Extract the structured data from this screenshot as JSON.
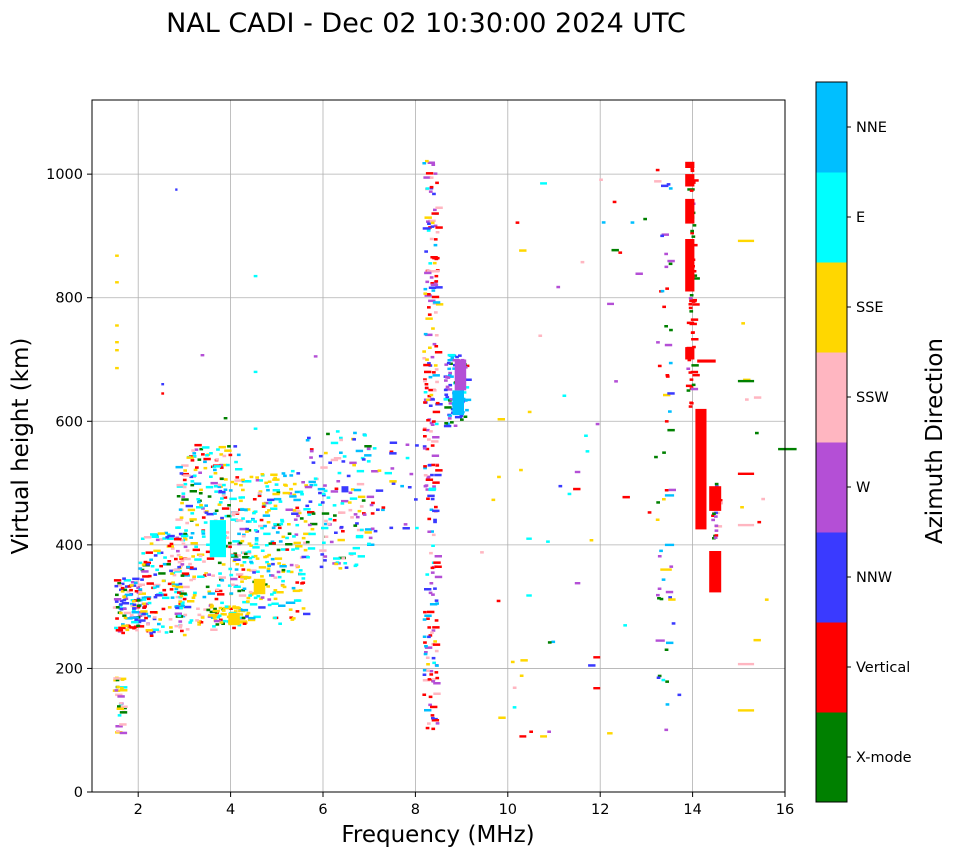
{
  "chart_data": {
    "type": "scatter",
    "subtype": "ionogram",
    "title": "NAL CADI - Dec 02 10:30:00 2024 UTC",
    "xlabel": "Frequency (MHz)",
    "ylabel": "Virtual height (km)",
    "xlim": [
      1,
      16
    ],
    "ylim": [
      0,
      1120
    ],
    "xticks": [
      2,
      4,
      6,
      8,
      10,
      12,
      14,
      16
    ],
    "yticks": [
      0,
      200,
      400,
      600,
      800,
      1000
    ],
    "grid": true,
    "colorbar": {
      "label": "Azimuth Direction",
      "position": "right",
      "categories": [
        "X-mode",
        "Vertical",
        "NNW",
        "W",
        "SSW",
        "SSE",
        "E",
        "NNE"
      ],
      "colors": [
        "#008000",
        "#ff0000",
        "#3a3aff",
        "#b44fd6",
        "#ffb6c1",
        "#ffd700",
        "#00ffff",
        "#00bfff"
      ]
    },
    "cell": {
      "df_mhz": 0.08,
      "dh_km": 4
    },
    "clusters": [
      {
        "f": [
          1.45,
          1.65
        ],
        "h": [
          90,
          190
        ],
        "n": 30,
        "mix": [
          3,
          0,
          0,
          1,
          4,
          4,
          1,
          0
        ]
      },
      {
        "f": [
          1.45,
          2.1
        ],
        "h": [
          255,
          345
        ],
        "n": 120,
        "mix": [
          2,
          4,
          3,
          2,
          3,
          3,
          2,
          2
        ]
      },
      {
        "f": [
          2.0,
          3.0
        ],
        "h": [
          250,
          420
        ],
        "n": 160,
        "mix": [
          1,
          4,
          2,
          1,
          4,
          2,
          3,
          2
        ]
      },
      {
        "f": [
          2.8,
          4.2
        ],
        "h": [
          260,
          560
        ],
        "n": 300,
        "mix": [
          2,
          3,
          1,
          1,
          3,
          4,
          4,
          2
        ]
      },
      {
        "f": [
          3.5,
          4.4
        ],
        "h": [
          270,
          300
        ],
        "n": 45,
        "mix": [
          1,
          0,
          0,
          0,
          0,
          6,
          1,
          0
        ]
      },
      {
        "f": [
          4.2,
          5.6
        ],
        "h": [
          270,
          520
        ],
        "n": 260,
        "mix": [
          1,
          1,
          1,
          1,
          1,
          6,
          5,
          2
        ]
      },
      {
        "f": [
          5.6,
          7.0
        ],
        "h": [
          360,
          585
        ],
        "n": 140,
        "mix": [
          1,
          1,
          3,
          3,
          2,
          2,
          5,
          2
        ]
      },
      {
        "f": [
          7.0,
          8.0
        ],
        "h": [
          420,
          565
        ],
        "n": 30,
        "mix": [
          0,
          1,
          3,
          2,
          0,
          1,
          3,
          1
        ]
      },
      {
        "f": [
          8.15,
          8.45
        ],
        "h": [
          90,
          1020
        ],
        "n": 240,
        "mix": [
          0,
          5,
          2,
          3,
          2,
          1,
          1,
          1
        ]
      },
      {
        "f": [
          8.6,
          9.1
        ],
        "h": [
          590,
          710
        ],
        "n": 90,
        "mix": [
          2,
          1,
          3,
          3,
          0,
          0,
          2,
          3
        ]
      },
      {
        "f": [
          9.3,
          13.7
        ],
        "h": [
          90,
          1000
        ],
        "n": 55,
        "mix": [
          1,
          2,
          1,
          2,
          2,
          2,
          2,
          1
        ]
      },
      {
        "f": [
          13.2,
          13.5
        ],
        "h": [
          95,
          1005
        ],
        "n": 45,
        "mix": [
          3,
          2,
          1,
          2,
          0,
          1,
          0,
          2
        ]
      },
      {
        "f": [
          13.85,
          14.0
        ],
        "h": [
          620,
          1010
        ],
        "n": 60,
        "mix": [
          2,
          6,
          0,
          1,
          0,
          0,
          0,
          0
        ]
      },
      {
        "f": [
          14.4,
          14.5
        ],
        "h": [
          405,
          500
        ],
        "n": 30,
        "mix": [
          3,
          3,
          1,
          3,
          1,
          0,
          0,
          0
        ]
      },
      {
        "f": [
          14.85,
          15.6
        ],
        "h": [
          130,
          900
        ],
        "n": 10,
        "mix": [
          1,
          1,
          0,
          0,
          2,
          2,
          0,
          0
        ]
      }
    ],
    "bars": [
      {
        "f": [
          13.84,
          14.04
        ],
        "h": [
          1010,
          1020
        ],
        "cat": "Vertical"
      },
      {
        "f": [
          13.84,
          14.04
        ],
        "h": [
          980,
          1000
        ],
        "cat": "Vertical"
      },
      {
        "f": [
          13.84,
          14.04
        ],
        "h": [
          920,
          960
        ],
        "cat": "Vertical"
      },
      {
        "f": [
          13.84,
          14.04
        ],
        "h": [
          810,
          895
        ],
        "cat": "Vertical"
      },
      {
        "f": [
          13.84,
          14.04
        ],
        "h": [
          700,
          720
        ],
        "cat": "Vertical"
      },
      {
        "f": [
          14.06,
          14.3
        ],
        "h": [
          425,
          620
        ],
        "cat": "Vertical"
      },
      {
        "f": [
          14.36,
          14.62
        ],
        "h": [
          323,
          390
        ],
        "cat": "Vertical"
      },
      {
        "f": [
          14.36,
          14.62
        ],
        "h": [
          455,
          495
        ],
        "cat": "Vertical"
      },
      {
        "f": [
          14.1,
          14.5
        ],
        "h": [
          695,
          700
        ],
        "cat": "Vertical"
      },
      {
        "f": [
          8.8,
          9.05
        ],
        "h": [
          610,
          650
        ],
        "cat": "NNE"
      },
      {
        "f": [
          8.85,
          9.1
        ],
        "h": [
          650,
          700
        ],
        "cat": "W"
      },
      {
        "f": [
          3.55,
          3.9
        ],
        "h": [
          380,
          440
        ],
        "cat": "E"
      },
      {
        "f": [
          3.95,
          4.2
        ],
        "h": [
          270,
          290
        ],
        "cat": "SSE"
      },
      {
        "f": [
          4.5,
          4.75
        ],
        "h": [
          320,
          345
        ],
        "cat": "SSE"
      },
      {
        "f": [
          6.4,
          6.55
        ],
        "h": [
          485,
          495
        ],
        "cat": "NNW"
      }
    ],
    "points": [
      {
        "f": 15.85,
        "h": 555,
        "cat": "X-mode",
        "w": 0.4
      },
      {
        "f": 14.98,
        "h": 892,
        "cat": "SSE",
        "w": 0.35
      },
      {
        "f": 14.98,
        "h": 665,
        "cat": "X-mode",
        "w": 0.35
      },
      {
        "f": 14.98,
        "h": 515,
        "cat": "Vertical",
        "w": 0.35
      },
      {
        "f": 14.98,
        "h": 432,
        "cat": "SSW",
        "w": 0.35
      },
      {
        "f": 14.98,
        "h": 207,
        "cat": "SSW",
        "w": 0.35
      },
      {
        "f": 14.98,
        "h": 132,
        "cat": "SSE",
        "w": 0.35
      },
      {
        "f": 13.3,
        "h": 360,
        "cat": "SSE",
        "w": 0.25
      },
      {
        "f": 13.2,
        "h": 245,
        "cat": "W",
        "w": 0.2
      },
      {
        "f": 13.4,
        "h": 400,
        "cat": "NNE",
        "w": 0.2
      },
      {
        "f": 13.4,
        "h": 480,
        "cat": "NNE",
        "w": 0.2
      },
      {
        "f": 10.7,
        "h": 985,
        "cat": "E",
        "w": 0.15
      },
      {
        "f": 10.7,
        "h": 90,
        "cat": "SSE",
        "w": 0.15
      },
      {
        "f": 10.25,
        "h": 90,
        "cat": "Vertical",
        "w": 0.15
      },
      {
        "f": 10.4,
        "h": 318,
        "cat": "E",
        "w": 0.12
      },
      {
        "f": 10.4,
        "h": 410,
        "cat": "E",
        "w": 0.12
      },
      {
        "f": 12.15,
        "h": 95,
        "cat": "SSE",
        "w": 0.12
      },
      {
        "f": 11.85,
        "h": 218,
        "cat": "Vertical",
        "w": 0.15
      },
      {
        "f": 11.85,
        "h": 168,
        "cat": "Vertical",
        "w": 0.15
      },
      {
        "f": 12.15,
        "h": 790,
        "cat": "W",
        "w": 0.15
      },
      {
        "f": 11.45,
        "h": 518,
        "cat": "W",
        "w": 0.12
      },
      {
        "f": 11.45,
        "h": 338,
        "cat": "W",
        "w": 0.12
      },
      {
        "f": 2.8,
        "h": 975,
        "cat": "NNW",
        "w": 0.05
      },
      {
        "f": 4.5,
        "h": 835,
        "cat": "E",
        "w": 0.08
      },
      {
        "f": 4.5,
        "h": 680,
        "cat": "E",
        "w": 0.08
      },
      {
        "f": 3.35,
        "h": 707,
        "cat": "W",
        "w": 0.08
      },
      {
        "f": 5.8,
        "h": 705,
        "cat": "W",
        "w": 0.08
      },
      {
        "f": 1.5,
        "h": 868,
        "cat": "SSE",
        "w": 0.08
      },
      {
        "f": 1.5,
        "h": 825,
        "cat": "SSE",
        "w": 0.08
      },
      {
        "f": 1.5,
        "h": 755,
        "cat": "SSE",
        "w": 0.08
      },
      {
        "f": 1.5,
        "h": 728,
        "cat": "SSE",
        "w": 0.08
      },
      {
        "f": 1.5,
        "h": 715,
        "cat": "SSE",
        "w": 0.08
      },
      {
        "f": 1.5,
        "h": 686,
        "cat": "SSE",
        "w": 0.08
      },
      {
        "f": 2.5,
        "h": 660,
        "cat": "NNW",
        "w": 0.06
      },
      {
        "f": 2.5,
        "h": 645,
        "cat": "Vertical",
        "w": 0.06
      },
      {
        "f": 3.85,
        "h": 605,
        "cat": "X-mode",
        "w": 0.08
      },
      {
        "f": 4.5,
        "h": 588,
        "cat": "E",
        "w": 0.08
      }
    ]
  }
}
